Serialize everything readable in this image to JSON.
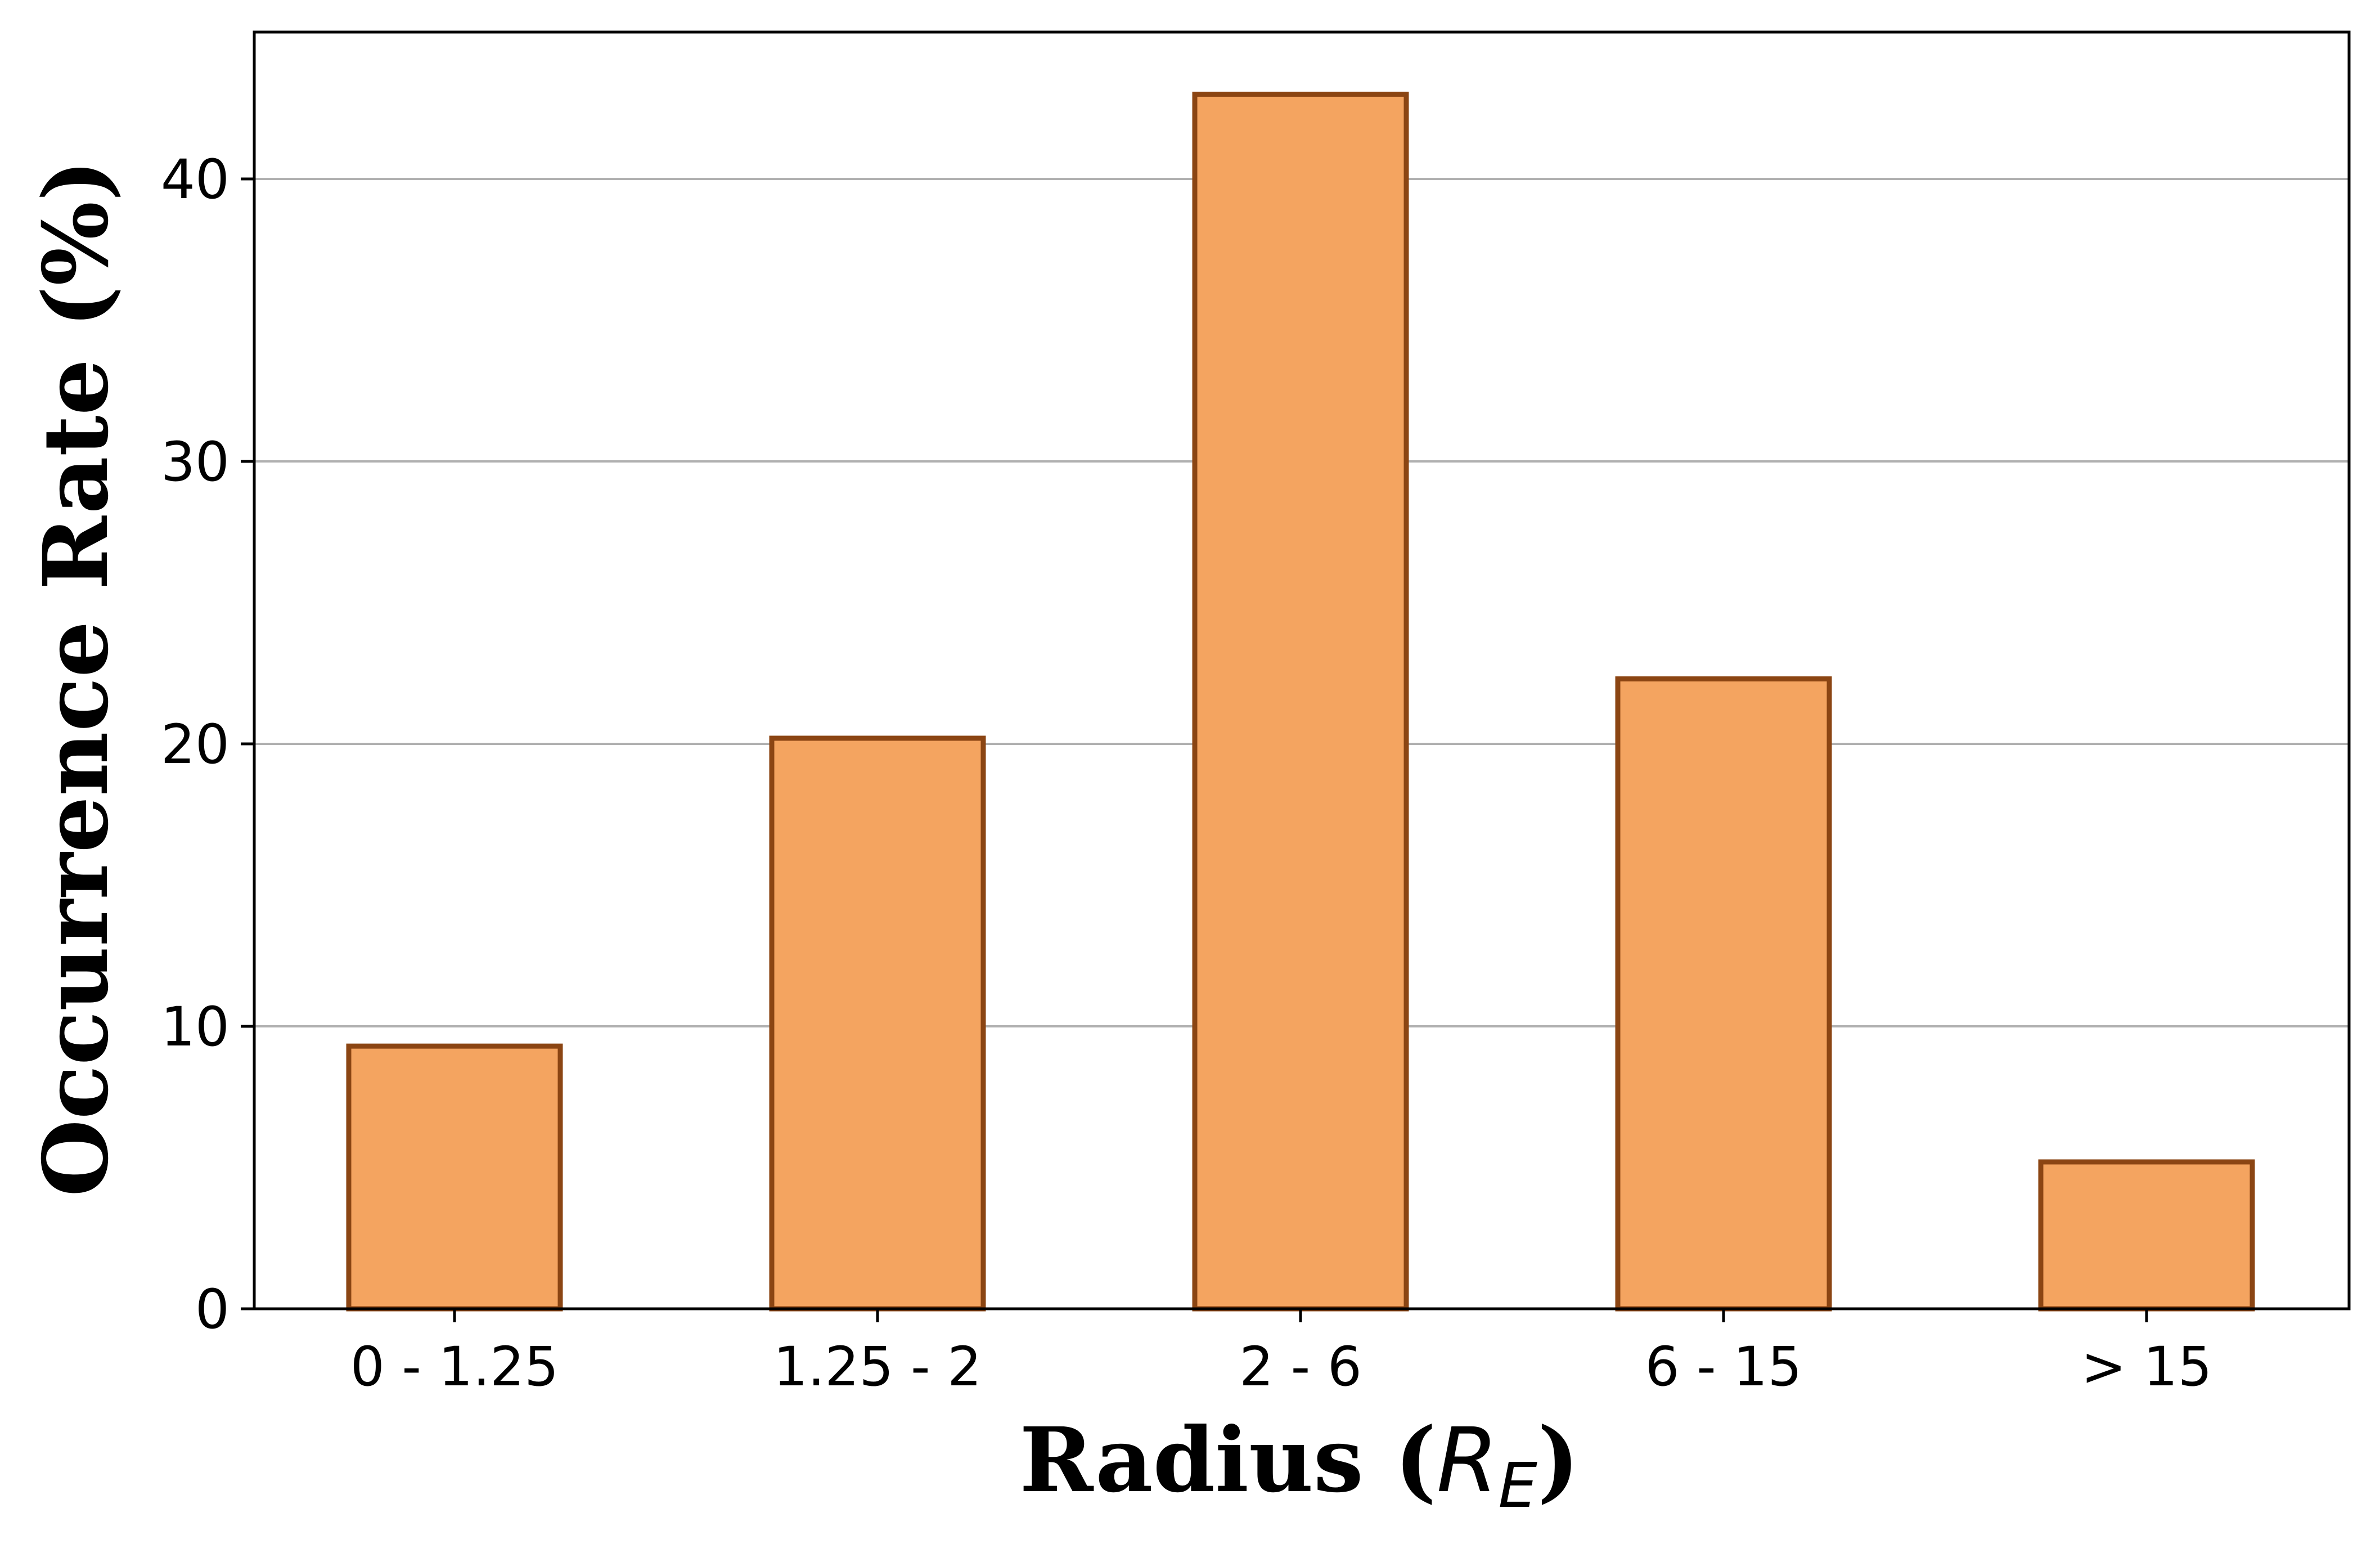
{
  "chart_data": {
    "type": "bar",
    "categories": [
      "0 - 1.25",
      "1.25 - 2",
      "2 - 6",
      "6 - 15",
      "> 15"
    ],
    "values": [
      9.3,
      20.2,
      43.0,
      22.3,
      5.2
    ],
    "title": "",
    "xlabel": {
      "prefix": "Radius (",
      "symbol": "R",
      "subscript": "E",
      "suffix": ")"
    },
    "ylabel": "Occurrence Rate (%)",
    "ylim": [
      0,
      45.2
    ],
    "yticks": [
      0,
      10,
      20,
      30,
      40
    ],
    "grid": "y",
    "colors": {
      "bar_fill": "#F4A460",
      "bar_edge": "#8B4513",
      "grid": "#b0b0b0",
      "axis": "#000000"
    }
  }
}
